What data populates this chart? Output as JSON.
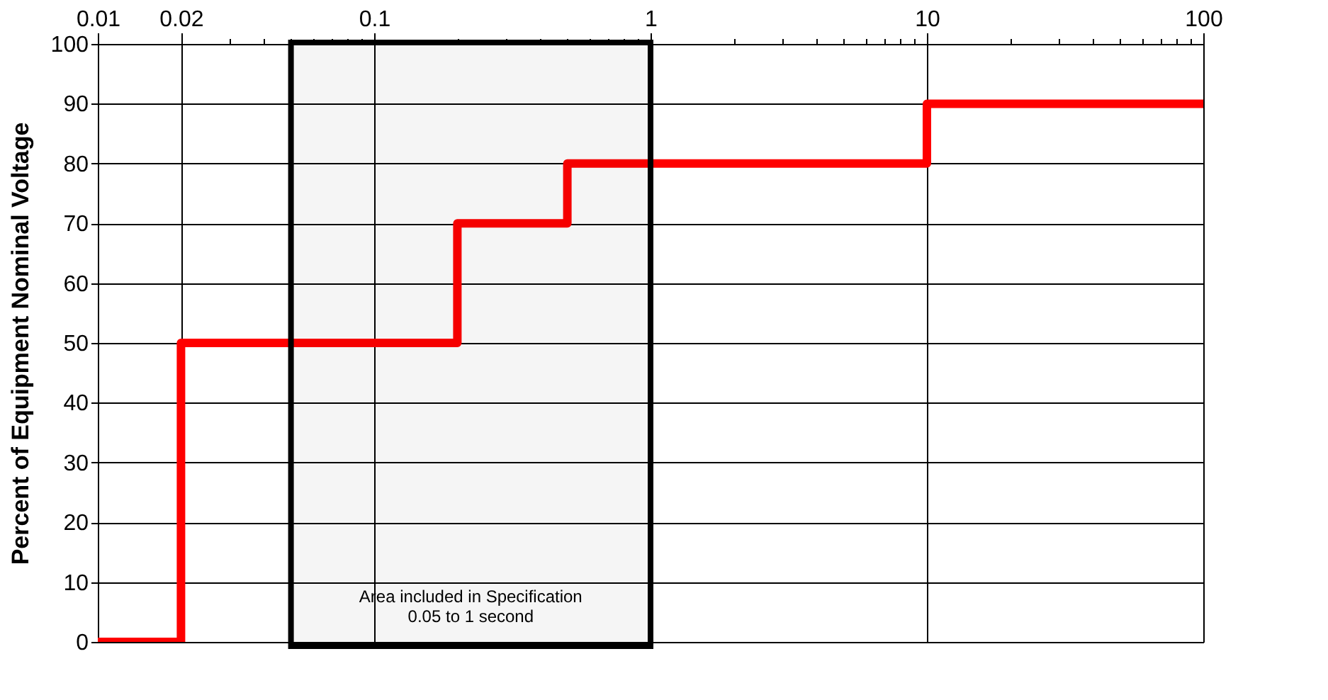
{
  "chart_data": {
    "type": "step",
    "ylabel": "Percent of Equipment Nominal Voltage",
    "x": [
      0.01,
      0.02,
      0.2,
      0.5,
      10,
      100
    ],
    "series": [
      {
        "color": "#ff0000",
        "values": [
          0,
          50,
          70,
          80,
          90,
          90
        ]
      }
    ],
    "log": "x",
    "xlim": [
      0.01,
      100
    ],
    "xticks": [
      0.01,
      0.02,
      {
        "value": 0.03,
        "label": null
      },
      {
        "value": 0.04,
        "label": null
      },
      {
        "value": 0.05,
        "label": null
      },
      {
        "value": 0.06,
        "label": null
      },
      {
        "value": 0.07,
        "label": null
      },
      {
        "value": 0.08,
        "label": null
      },
      {
        "value": 0.09,
        "label": null
      },
      0.1,
      {
        "value": 0.2,
        "label": null
      },
      {
        "value": 0.3,
        "label": null
      },
      {
        "value": 0.4,
        "label": null
      },
      {
        "value": 0.5,
        "label": null
      },
      {
        "value": 0.6,
        "label": null
      },
      {
        "value": 0.7,
        "label": null
      },
      {
        "value": 0.8,
        "label": null
      },
      {
        "value": 0.9,
        "label": null
      },
      1,
      {
        "value": 2,
        "label": null
      },
      {
        "value": 3,
        "label": null
      },
      {
        "value": 4,
        "label": null
      },
      {
        "value": 5,
        "label": null
      },
      {
        "value": 6,
        "label": null
      },
      {
        "value": 7,
        "label": null
      },
      {
        "value": 8,
        "label": null
      },
      {
        "value": 9,
        "label": null
      },
      10,
      {
        "value": 20,
        "label": null
      },
      {
        "value": 30,
        "label": null
      },
      {
        "value": 40,
        "label": null
      },
      {
        "value": 50,
        "label": null
      },
      {
        "value": 60,
        "label": null
      },
      {
        "value": 70,
        "label": null
      },
      {
        "value": 80,
        "label": null
      },
      {
        "value": 90,
        "label": null
      },
      100
    ],
    "ylim": [
      0,
      100
    ],
    "yticks": [
      0,
      10,
      20,
      30,
      40,
      50,
      60,
      70,
      80,
      90,
      100
    ],
    "grid": true,
    "line_style": "solid",
    "marker": "none",
    "bands": [
      {
        "axis": "x",
        "from": 0.05,
        "to": 1,
        "label": "Area included in Specification\n0.05 to 1 second",
        "color": "#000000"
      }
    ]
  }
}
